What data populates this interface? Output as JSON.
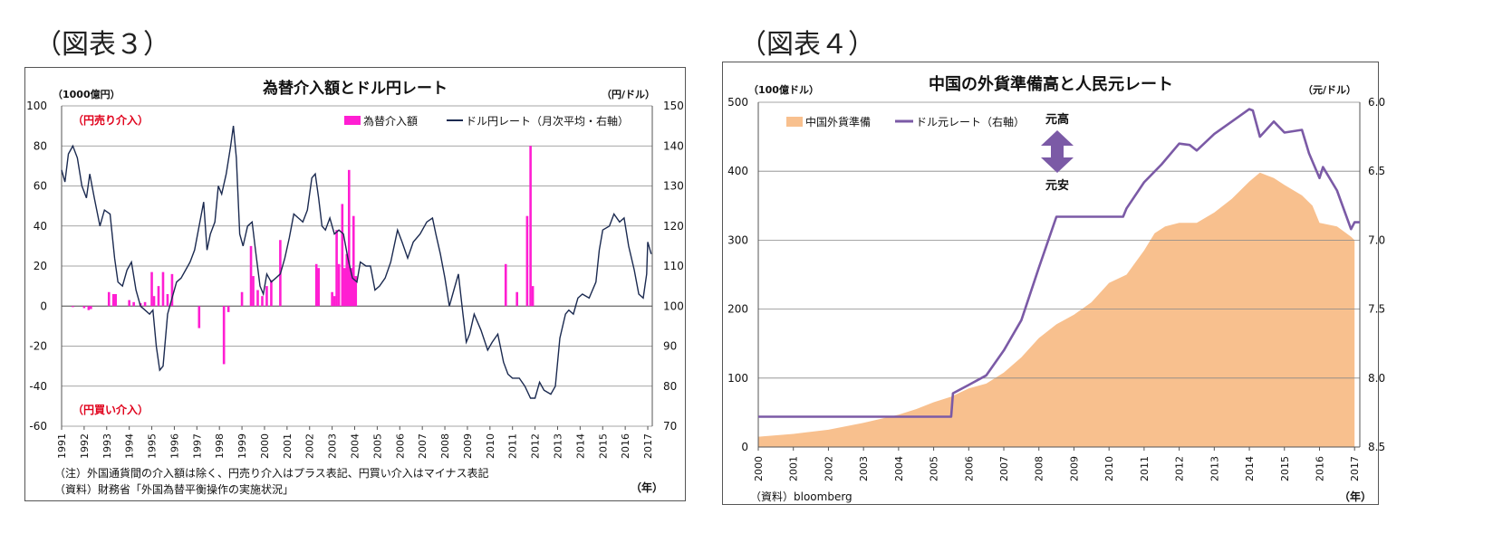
{
  "figure3": {
    "label": "（図表３）",
    "chart_data": {
      "type": "bar+line",
      "title": "為替介入額とドル円レート",
      "left_axis_unit": "（1000億円）",
      "right_axis_unit": "（円/ドル）",
      "x_unit": "（年）",
      "left_ylim": [
        -60,
        100
      ],
      "left_ticks": [
        "100",
        "80",
        "60",
        "40",
        "20",
        "0",
        "-20",
        "-40",
        "-60"
      ],
      "right_ylim": [
        70,
        150
      ],
      "right_ticks": [
        "150",
        "140",
        "130",
        "120",
        "110",
        "100",
        "90",
        "80",
        "70"
      ],
      "x_ticks": [
        "1991",
        "1992",
        "1993",
        "1994",
        "1995",
        "1996",
        "1997",
        "1998",
        "1999",
        "2000",
        "2001",
        "2002",
        "2003",
        "2004",
        "2005",
        "2006",
        "2007",
        "2008",
        "2009",
        "2010",
        "2011",
        "2012",
        "2013",
        "2014",
        "2015",
        "2016",
        "2017"
      ],
      "grid": "horizontal",
      "annotation_top": "（円売り介入）",
      "annotation_bottom": "（円買い介入）",
      "legend": {
        "bar": "為替介入額",
        "line": "ドル円レート（月次平均・右軸）"
      },
      "bar_color": "#ff1ed2",
      "line_color": "#1b2a50",
      "series_bar": [
        {
          "x": 1991.5,
          "y": -0.5
        },
        {
          "x": 1992.0,
          "y": -1
        },
        {
          "x": 1992.2,
          "y": -2
        },
        {
          "x": 1992.3,
          "y": -1.5
        },
        {
          "x": 1993.1,
          "y": 7
        },
        {
          "x": 1993.3,
          "y": 6
        },
        {
          "x": 1993.4,
          "y": 6
        },
        {
          "x": 1994.0,
          "y": 3
        },
        {
          "x": 1994.2,
          "y": 2
        },
        {
          "x": 1994.5,
          "y": 1.5
        },
        {
          "x": 1994.7,
          "y": 2
        },
        {
          "x": 1995.0,
          "y": 17
        },
        {
          "x": 1995.1,
          "y": 5
        },
        {
          "x": 1995.3,
          "y": 10
        },
        {
          "x": 1995.5,
          "y": 17
        },
        {
          "x": 1995.7,
          "y": 6
        },
        {
          "x": 1995.9,
          "y": 16
        },
        {
          "x": 1997.1,
          "y": -11
        },
        {
          "x": 1998.2,
          "y": -29
        },
        {
          "x": 1998.4,
          "y": -3
        },
        {
          "x": 1999.0,
          "y": 7
        },
        {
          "x": 1999.4,
          "y": 30
        },
        {
          "x": 1999.5,
          "y": 15
        },
        {
          "x": 1999.7,
          "y": 8
        },
        {
          "x": 1999.9,
          "y": 5
        },
        {
          "x": 2000.1,
          "y": 10
        },
        {
          "x": 2000.3,
          "y": 13
        },
        {
          "x": 2000.7,
          "y": 33
        },
        {
          "x": 2002.3,
          "y": 21
        },
        {
          "x": 2002.4,
          "y": 19
        },
        {
          "x": 2003.0,
          "y": 7
        },
        {
          "x": 2003.1,
          "y": 5
        },
        {
          "x": 2003.2,
          "y": 38
        },
        {
          "x": 2003.3,
          "y": 21
        },
        {
          "x": 2003.45,
          "y": 51
        },
        {
          "x": 2003.55,
          "y": 19
        },
        {
          "x": 2003.65,
          "y": 26
        },
        {
          "x": 2003.75,
          "y": 68
        },
        {
          "x": 2003.85,
          "y": 19
        },
        {
          "x": 2003.95,
          "y": 45
        },
        {
          "x": 2004.05,
          "y": 15
        },
        {
          "x": 2010.7,
          "y": 21
        },
        {
          "x": 2011.2,
          "y": 7
        },
        {
          "x": 2011.65,
          "y": 45
        },
        {
          "x": 2011.8,
          "y": 80
        },
        {
          "x": 2011.9,
          "y": 10
        }
      ],
      "series_line": [
        {
          "x": 1991.0,
          "y": 134
        },
        {
          "x": 1991.15,
          "y": 131
        },
        {
          "x": 1991.3,
          "y": 138
        },
        {
          "x": 1991.5,
          "y": 140
        },
        {
          "x": 1991.7,
          "y": 137
        },
        {
          "x": 1991.9,
          "y": 130
        },
        {
          "x": 1992.1,
          "y": 127
        },
        {
          "x": 1992.25,
          "y": 133
        },
        {
          "x": 1992.45,
          "y": 127
        },
        {
          "x": 1992.7,
          "y": 120
        },
        {
          "x": 1992.9,
          "y": 124
        },
        {
          "x": 1993.15,
          "y": 123
        },
        {
          "x": 1993.35,
          "y": 112
        },
        {
          "x": 1993.5,
          "y": 106
        },
        {
          "x": 1993.7,
          "y": 105
        },
        {
          "x": 1993.9,
          "y": 109
        },
        {
          "x": 1994.1,
          "y": 111
        },
        {
          "x": 1994.3,
          "y": 104
        },
        {
          "x": 1994.5,
          "y": 100
        },
        {
          "x": 1994.7,
          "y": 99
        },
        {
          "x": 1994.9,
          "y": 98
        },
        {
          "x": 1995.05,
          "y": 99
        },
        {
          "x": 1995.2,
          "y": 90
        },
        {
          "x": 1995.35,
          "y": 84
        },
        {
          "x": 1995.5,
          "y": 85
        },
        {
          "x": 1995.7,
          "y": 98
        },
        {
          "x": 1995.9,
          "y": 102
        },
        {
          "x": 1996.1,
          "y": 106
        },
        {
          "x": 1996.3,
          "y": 107
        },
        {
          "x": 1996.5,
          "y": 109
        },
        {
          "x": 1996.7,
          "y": 111
        },
        {
          "x": 1996.9,
          "y": 114
        },
        {
          "x": 1997.1,
          "y": 120
        },
        {
          "x": 1997.3,
          "y": 126
        },
        {
          "x": 1997.45,
          "y": 114
        },
        {
          "x": 1997.6,
          "y": 118
        },
        {
          "x": 1997.8,
          "y": 121
        },
        {
          "x": 1997.95,
          "y": 130
        },
        {
          "x": 1998.1,
          "y": 128
        },
        {
          "x": 1998.3,
          "y": 133
        },
        {
          "x": 1998.5,
          "y": 140
        },
        {
          "x": 1998.62,
          "y": 145
        },
        {
          "x": 1998.75,
          "y": 137
        },
        {
          "x": 1998.9,
          "y": 118
        },
        {
          "x": 1999.05,
          "y": 115
        },
        {
          "x": 1999.25,
          "y": 120
        },
        {
          "x": 1999.45,
          "y": 121
        },
        {
          "x": 1999.6,
          "y": 114
        },
        {
          "x": 1999.8,
          "y": 105
        },
        {
          "x": 1999.95,
          "y": 103
        },
        {
          "x": 2000.1,
          "y": 108
        },
        {
          "x": 2000.3,
          "y": 106
        },
        {
          "x": 2000.5,
          "y": 107
        },
        {
          "x": 2000.7,
          "y": 108
        },
        {
          "x": 2000.9,
          "y": 112
        },
        {
          "x": 2001.1,
          "y": 117
        },
        {
          "x": 2001.3,
          "y": 123
        },
        {
          "x": 2001.5,
          "y": 122
        },
        {
          "x": 2001.7,
          "y": 121
        },
        {
          "x": 2001.9,
          "y": 124
        },
        {
          "x": 2002.1,
          "y": 132
        },
        {
          "x": 2002.25,
          "y": 133
        },
        {
          "x": 2002.4,
          "y": 127
        },
        {
          "x": 2002.55,
          "y": 120
        },
        {
          "x": 2002.7,
          "y": 119
        },
        {
          "x": 2002.9,
          "y": 122
        },
        {
          "x": 2003.1,
          "y": 118
        },
        {
          "x": 2003.3,
          "y": 119
        },
        {
          "x": 2003.5,
          "y": 118
        },
        {
          "x": 2003.7,
          "y": 112
        },
        {
          "x": 2003.9,
          "y": 107
        },
        {
          "x": 2004.1,
          "y": 106
        },
        {
          "x": 2004.25,
          "y": 111
        },
        {
          "x": 2004.5,
          "y": 110
        },
        {
          "x": 2004.7,
          "y": 110
        },
        {
          "x": 2004.9,
          "y": 104
        },
        {
          "x": 2005.1,
          "y": 105
        },
        {
          "x": 2005.35,
          "y": 107
        },
        {
          "x": 2005.6,
          "y": 111
        },
        {
          "x": 2005.9,
          "y": 119
        },
        {
          "x": 2006.1,
          "y": 116
        },
        {
          "x": 2006.35,
          "y": 112
        },
        {
          "x": 2006.6,
          "y": 116
        },
        {
          "x": 2006.9,
          "y": 118
        },
        {
          "x": 2007.2,
          "y": 121
        },
        {
          "x": 2007.45,
          "y": 122
        },
        {
          "x": 2007.6,
          "y": 118
        },
        {
          "x": 2007.8,
          "y": 113
        },
        {
          "x": 2008.0,
          "y": 107
        },
        {
          "x": 2008.2,
          "y": 100
        },
        {
          "x": 2008.4,
          "y": 104
        },
        {
          "x": 2008.6,
          "y": 108
        },
        {
          "x": 2008.8,
          "y": 98
        },
        {
          "x": 2008.95,
          "y": 91
        },
        {
          "x": 2009.1,
          "y": 93
        },
        {
          "x": 2009.3,
          "y": 98
        },
        {
          "x": 2009.6,
          "y": 94
        },
        {
          "x": 2009.9,
          "y": 89
        },
        {
          "x": 2010.1,
          "y": 91
        },
        {
          "x": 2010.35,
          "y": 93
        },
        {
          "x": 2010.6,
          "y": 86
        },
        {
          "x": 2010.8,
          "y": 83
        },
        {
          "x": 2011.0,
          "y": 82
        },
        {
          "x": 2011.3,
          "y": 82
        },
        {
          "x": 2011.55,
          "y": 80
        },
        {
          "x": 2011.8,
          "y": 77
        },
        {
          "x": 2012.0,
          "y": 77
        },
        {
          "x": 2012.2,
          "y": 81
        },
        {
          "x": 2012.4,
          "y": 79
        },
        {
          "x": 2012.7,
          "y": 78
        },
        {
          "x": 2012.9,
          "y": 80
        },
        {
          "x": 2013.1,
          "y": 92
        },
        {
          "x": 2013.35,
          "y": 98
        },
        {
          "x": 2013.5,
          "y": 99
        },
        {
          "x": 2013.7,
          "y": 98
        },
        {
          "x": 2013.9,
          "y": 102
        },
        {
          "x": 2014.1,
          "y": 103
        },
        {
          "x": 2014.4,
          "y": 102
        },
        {
          "x": 2014.7,
          "y": 106
        },
        {
          "x": 2014.85,
          "y": 114
        },
        {
          "x": 2015.0,
          "y": 119
        },
        {
          "x": 2015.3,
          "y": 120
        },
        {
          "x": 2015.5,
          "y": 123
        },
        {
          "x": 2015.75,
          "y": 121
        },
        {
          "x": 2015.95,
          "y": 122
        },
        {
          "x": 2016.15,
          "y": 115
        },
        {
          "x": 2016.4,
          "y": 109
        },
        {
          "x": 2016.6,
          "y": 103
        },
        {
          "x": 2016.8,
          "y": 102
        },
        {
          "x": 2016.95,
          "y": 108
        },
        {
          "x": 2017.0,
          "y": 116
        },
        {
          "x": 2017.15,
          "y": 113
        }
      ]
    },
    "note": "（注）外国通貨間の介入額は除く、円売り介入はプラス表記、円買い介入はマイナス表記",
    "source": "（資料）財務省「外国為替平衡操作の実施状況」"
  },
  "figure4": {
    "label": "（図表４）",
    "chart_data": {
      "type": "area+line",
      "title": "中国の外貨準備高と人民元レート",
      "left_axis_unit": "（100億ドル）",
      "right_axis_unit": "（元/ドル）",
      "x_unit": "（年）",
      "left_ylim": [
        0,
        500
      ],
      "left_ticks": [
        "500",
        "400",
        "300",
        "200",
        "100",
        "0"
      ],
      "right_ylim": [
        8.5,
        6.0
      ],
      "right_ticks": [
        "6.0",
        "6.5",
        "7.0",
        "7.5",
        "8.0",
        "8.5"
      ],
      "right_axis_inverted": true,
      "x_ticks": [
        "2000",
        "2001",
        "2002",
        "2003",
        "2004",
        "2005",
        "2006",
        "2007",
        "2008",
        "2009",
        "2010",
        "2011",
        "2012",
        "2013",
        "2014",
        "2015",
        "2016",
        "2017"
      ],
      "grid": "horizontal",
      "legend": {
        "area": "中国外貨準備",
        "line": "ドル元レート（右軸）"
      },
      "annotation_up": "元高",
      "annotation_down": "元安",
      "area_color": "#f8c08e",
      "line_color": "#7b5aa6",
      "series_area": [
        {
          "x": 2000.0,
          "y": 15
        },
        {
          "x": 2001.0,
          "y": 19
        },
        {
          "x": 2002.0,
          "y": 25
        },
        {
          "x": 2003.0,
          "y": 35
        },
        {
          "x": 2004.0,
          "y": 47
        },
        {
          "x": 2004.5,
          "y": 55
        },
        {
          "x": 2005.0,
          "y": 65
        },
        {
          "x": 2005.5,
          "y": 73
        },
        {
          "x": 2006.0,
          "y": 85
        },
        {
          "x": 2006.5,
          "y": 92
        },
        {
          "x": 2007.0,
          "y": 108
        },
        {
          "x": 2007.5,
          "y": 130
        },
        {
          "x": 2008.0,
          "y": 158
        },
        {
          "x": 2008.5,
          "y": 178
        },
        {
          "x": 2009.0,
          "y": 192
        },
        {
          "x": 2009.5,
          "y": 210
        },
        {
          "x": 2010.0,
          "y": 238
        },
        {
          "x": 2010.5,
          "y": 250
        },
        {
          "x": 2011.0,
          "y": 285
        },
        {
          "x": 2011.3,
          "y": 310
        },
        {
          "x": 2011.6,
          "y": 320
        },
        {
          "x": 2012.0,
          "y": 325
        },
        {
          "x": 2012.5,
          "y": 325
        },
        {
          "x": 2013.0,
          "y": 340
        },
        {
          "x": 2013.5,
          "y": 360
        },
        {
          "x": 2014.0,
          "y": 385
        },
        {
          "x": 2014.3,
          "y": 398
        },
        {
          "x": 2014.7,
          "y": 390
        },
        {
          "x": 2015.0,
          "y": 380
        },
        {
          "x": 2015.5,
          "y": 365
        },
        {
          "x": 2015.8,
          "y": 350
        },
        {
          "x": 2016.0,
          "y": 325
        },
        {
          "x": 2016.5,
          "y": 320
        },
        {
          "x": 2016.9,
          "y": 305
        },
        {
          "x": 2017.0,
          "y": 300
        }
      ],
      "series_line": [
        {
          "x": 2000.0,
          "y": 8.28
        },
        {
          "x": 2002.0,
          "y": 8.28
        },
        {
          "x": 2004.0,
          "y": 8.28
        },
        {
          "x": 2005.5,
          "y": 8.28
        },
        {
          "x": 2005.55,
          "y": 8.11
        },
        {
          "x": 2006.0,
          "y": 8.05
        },
        {
          "x": 2006.5,
          "y": 7.98
        },
        {
          "x": 2007.0,
          "y": 7.8
        },
        {
          "x": 2007.5,
          "y": 7.58
        },
        {
          "x": 2008.0,
          "y": 7.2
        },
        {
          "x": 2008.5,
          "y": 6.83
        },
        {
          "x": 2009.0,
          "y": 6.83
        },
        {
          "x": 2010.0,
          "y": 6.83
        },
        {
          "x": 2010.4,
          "y": 6.83
        },
        {
          "x": 2010.5,
          "y": 6.77
        },
        {
          "x": 2011.0,
          "y": 6.58
        },
        {
          "x": 2011.5,
          "y": 6.45
        },
        {
          "x": 2012.0,
          "y": 6.3
        },
        {
          "x": 2012.3,
          "y": 6.31
        },
        {
          "x": 2012.5,
          "y": 6.35
        },
        {
          "x": 2013.0,
          "y": 6.23
        },
        {
          "x": 2013.5,
          "y": 6.14
        },
        {
          "x": 2014.0,
          "y": 6.05
        },
        {
          "x": 2014.1,
          "y": 6.06
        },
        {
          "x": 2014.3,
          "y": 6.25
        },
        {
          "x": 2014.7,
          "y": 6.14
        },
        {
          "x": 2015.0,
          "y": 6.22
        },
        {
          "x": 2015.5,
          "y": 6.2
        },
        {
          "x": 2015.7,
          "y": 6.37
        },
        {
          "x": 2016.0,
          "y": 6.55
        },
        {
          "x": 2016.1,
          "y": 6.47
        },
        {
          "x": 2016.5,
          "y": 6.64
        },
        {
          "x": 2016.9,
          "y": 6.92
        },
        {
          "x": 2017.0,
          "y": 6.87
        },
        {
          "x": 2017.15,
          "y": 6.87
        }
      ]
    },
    "source": "（資料）bloomberg"
  }
}
